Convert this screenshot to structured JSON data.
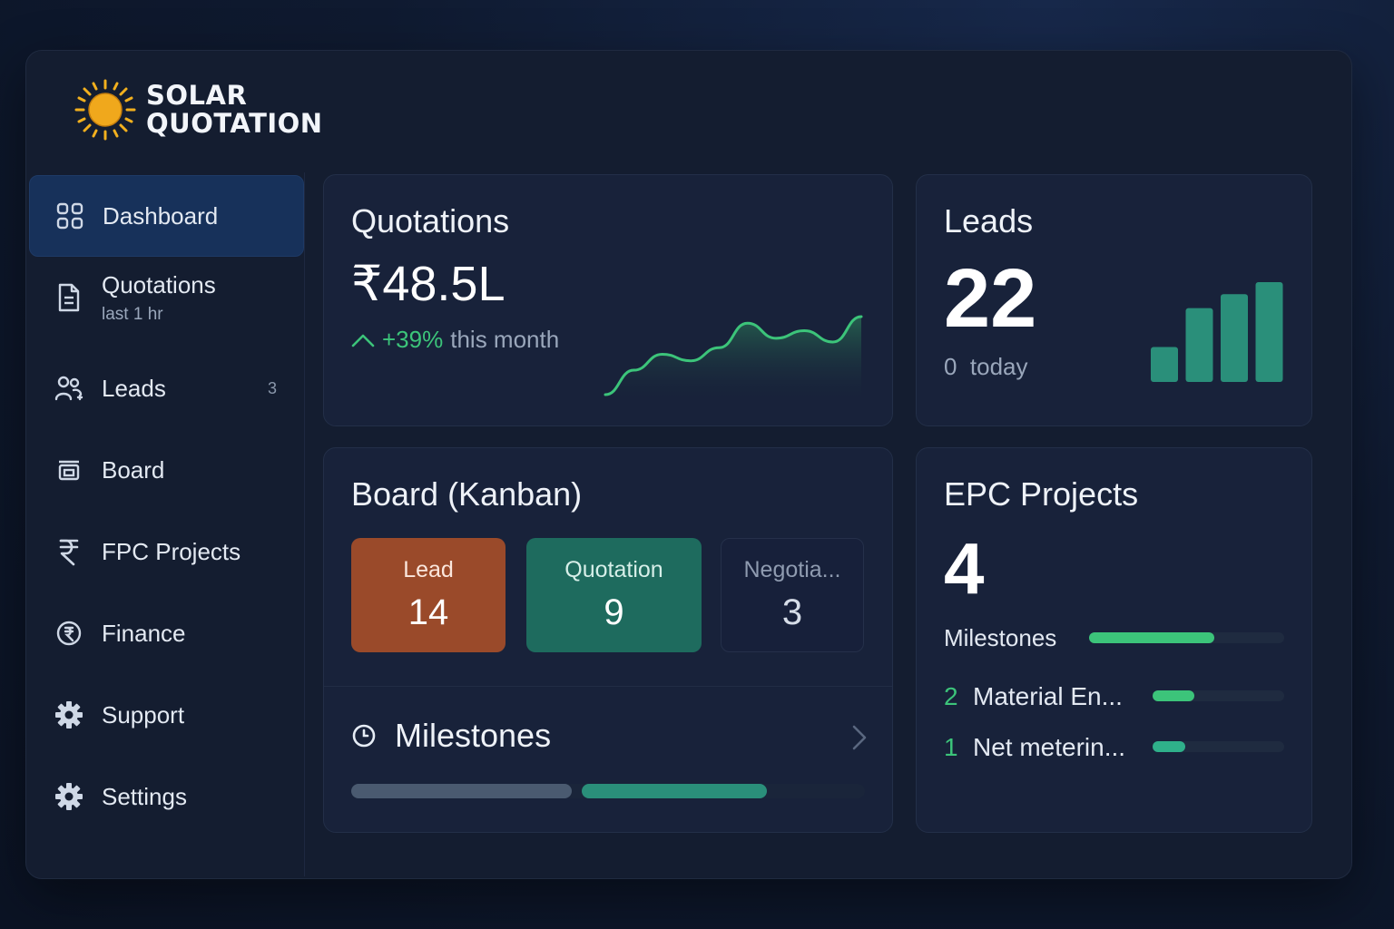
{
  "app": {
    "logo_line1": "SOLAR",
    "logo_line2": "QUOTATION"
  },
  "sidebar": {
    "items": [
      {
        "label": "Dashboard",
        "icon": "grid-icon",
        "active": true
      },
      {
        "label": "Quotations",
        "sublabel": "last 1 hr",
        "icon": "document-icon"
      },
      {
        "label": "Leads",
        "badge": "3",
        "icon": "users-icon"
      },
      {
        "label": "Board",
        "icon": "board-icon"
      },
      {
        "label": "FPC Projects",
        "icon": "rupee-icon"
      },
      {
        "label": "Finance",
        "icon": "finance-icon"
      },
      {
        "label": "Support",
        "icon": "gear-icon"
      },
      {
        "label": "Settings",
        "icon": "gear-icon"
      }
    ]
  },
  "quotations_card": {
    "title": "Quotations",
    "amount": "₹48.5L",
    "change": "+39%",
    "change_suffix": "this month",
    "trend": [
      2,
      28,
      45,
      38,
      52,
      78,
      62,
      70,
      58,
      85
    ]
  },
  "leads_card": {
    "title": "Leads",
    "count": "22",
    "today": "0  today",
    "bars": [
      35,
      74,
      88,
      100
    ]
  },
  "board_card": {
    "title": "Board (Kanban)",
    "columns": [
      {
        "label": "Lead",
        "count": "14",
        "color": "#9a4a2a"
      },
      {
        "label": "Quotation",
        "count": "9",
        "color": "#1e6b5e"
      },
      {
        "label": "Negotia...",
        "count": "3",
        "color": "#18223a"
      }
    ],
    "milestones_label": "Milestones",
    "progress": [
      0.43,
      0.4
    ]
  },
  "epc_card": {
    "title": "EPC Projects",
    "count": "4",
    "milestones_label": "Milestones",
    "milestones_progress": 0.64,
    "items": [
      {
        "count": "2",
        "label": "Material En...",
        "progress": 0.32
      },
      {
        "count": "1",
        "label": "Net meterin...",
        "progress": 0.25
      }
    ]
  },
  "colors": {
    "accent_green": "#3cc47a",
    "teal": "#2a8f7a",
    "lead_orange": "#9a4a2a"
  }
}
